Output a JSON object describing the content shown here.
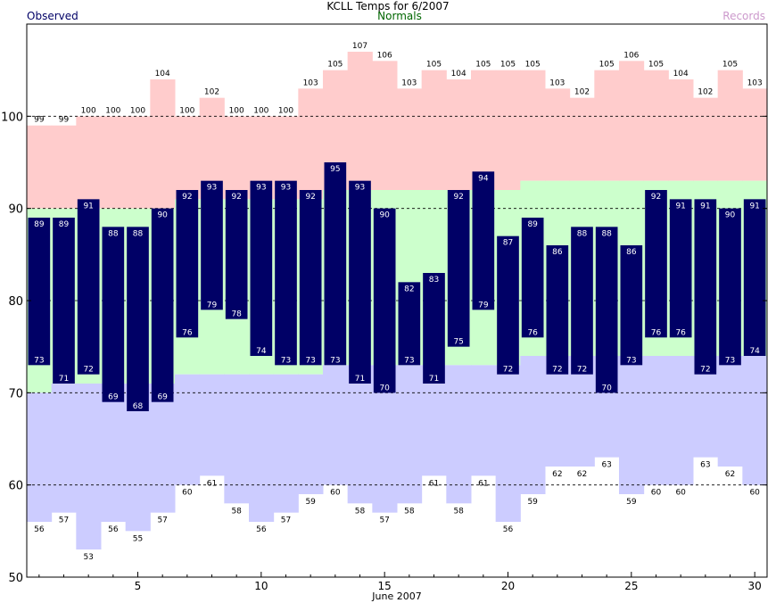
{
  "title": "KCLL Temps for 6/2007",
  "legend": {
    "observed": "Observed",
    "normals": "Normals",
    "records": "Records"
  },
  "colors": {
    "observed": "#000066",
    "observed_label": "#000066",
    "normals_band": "#ccffcc",
    "normals_label": "#006600",
    "record_high_band": "#ffcccc",
    "record_low_band": "#ccccff",
    "records_label": "#cc99cc"
  },
  "chart_data": {
    "type": "bar",
    "title": "KCLL Temps for 6/2007",
    "xlabel": "June 2007",
    "ylabel": "",
    "ylim": [
      50,
      110
    ],
    "yticks": [
      50,
      60,
      70,
      80,
      90,
      100
    ],
    "xticks": [
      5,
      10,
      15,
      20,
      25,
      30
    ],
    "grid": "dashed horizontal at 60, 70, 80, 90, 100",
    "days": [
      1,
      2,
      3,
      4,
      5,
      6,
      7,
      8,
      9,
      10,
      11,
      12,
      13,
      14,
      15,
      16,
      17,
      18,
      19,
      20,
      21,
      22,
      23,
      24,
      25,
      26,
      27,
      28,
      29,
      30
    ],
    "series": [
      {
        "name": "Observed",
        "type": "floating-bar",
        "high": [
          89,
          89,
          91,
          88,
          88,
          90,
          92,
          93,
          92,
          93,
          93,
          92,
          95,
          93,
          90,
          82,
          83,
          92,
          94,
          87,
          89,
          86,
          88,
          88,
          86,
          92,
          91,
          91,
          90,
          91
        ],
        "low": [
          73,
          71,
          72,
          69,
          68,
          69,
          76,
          79,
          78,
          74,
          73,
          73,
          73,
          71,
          70,
          73,
          71,
          75,
          79,
          72,
          76,
          72,
          72,
          70,
          73,
          76,
          76,
          72,
          73,
          74
        ]
      },
      {
        "name": "Normals",
        "type": "band",
        "high": [
          90,
          90,
          90,
          90,
          90,
          90,
          91,
          91,
          91,
          91,
          91,
          91,
          92,
          92,
          92,
          92,
          92,
          92,
          92,
          92,
          93,
          93,
          93,
          93,
          93,
          93,
          93,
          93,
          93,
          93
        ],
        "low": [
          70,
          71,
          71,
          71,
          71,
          71,
          72,
          72,
          72,
          72,
          72,
          72,
          73,
          73,
          73,
          73,
          73,
          73,
          73,
          73,
          74,
          74,
          74,
          74,
          74,
          74,
          74,
          74,
          74,
          74
        ]
      },
      {
        "name": "Records",
        "type": "band",
        "high": [
          99,
          99,
          100,
          100,
          100,
          104,
          100,
          102,
          100,
          100,
          100,
          103,
          105,
          107,
          106,
          103,
          105,
          104,
          105,
          105,
          105,
          103,
          102,
          105,
          106,
          105,
          104,
          102,
          105,
          103
        ],
        "low": [
          56,
          57,
          53,
          56,
          55,
          57,
          60,
          61,
          58,
          56,
          57,
          59,
          60,
          58,
          57,
          58,
          61,
          58,
          61,
          56,
          59,
          62,
          62,
          63,
          59,
          60,
          60,
          63,
          62,
          60
        ]
      }
    ]
  }
}
